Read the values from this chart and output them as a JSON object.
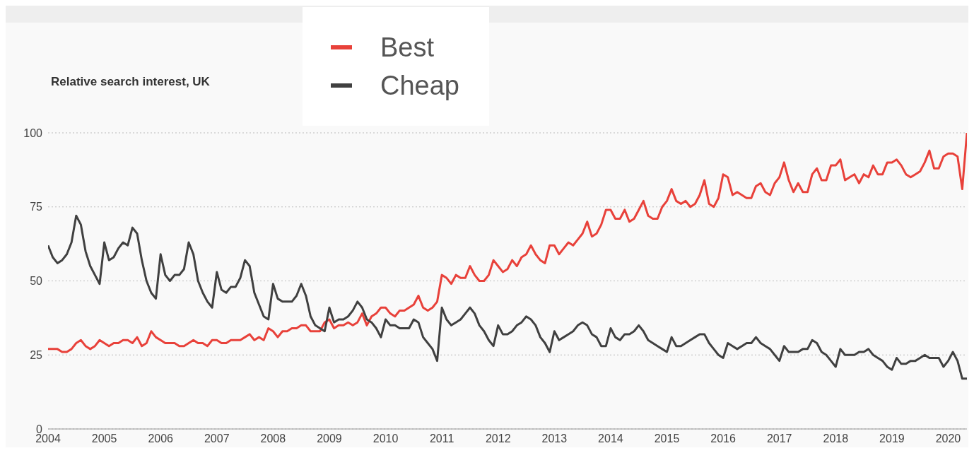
{
  "chart_data": {
    "type": "line",
    "ylabel": "Relative search interest, UK",
    "x": [
      "2004-01",
      "2004-02",
      "2004-03",
      "2004-04",
      "2004-05",
      "2004-06",
      "2004-07",
      "2004-08",
      "2004-09",
      "2004-10",
      "2004-11",
      "2004-12",
      "2005-01",
      "2005-02",
      "2005-03",
      "2005-04",
      "2005-05",
      "2005-06",
      "2005-07",
      "2005-08",
      "2005-09",
      "2005-10",
      "2005-11",
      "2005-12",
      "2006-01",
      "2006-02",
      "2006-03",
      "2006-04",
      "2006-05",
      "2006-06",
      "2006-07",
      "2006-08",
      "2006-09",
      "2006-10",
      "2006-11",
      "2006-12",
      "2007-01",
      "2007-02",
      "2007-03",
      "2007-04",
      "2007-05",
      "2007-06",
      "2007-07",
      "2007-08",
      "2007-09",
      "2007-10",
      "2007-11",
      "2007-12",
      "2008-01",
      "2008-02",
      "2008-03",
      "2008-04",
      "2008-05",
      "2008-06",
      "2008-07",
      "2008-08",
      "2008-09",
      "2008-10",
      "2008-11",
      "2008-12",
      "2009-01",
      "2009-02",
      "2009-03",
      "2009-04",
      "2009-05",
      "2009-06",
      "2009-07",
      "2009-08",
      "2009-09",
      "2009-10",
      "2009-11",
      "2009-12",
      "2010-01",
      "2010-02",
      "2010-03",
      "2010-04",
      "2010-05",
      "2010-06",
      "2010-07",
      "2010-08",
      "2010-09",
      "2010-10",
      "2010-11",
      "2010-12",
      "2011-01",
      "2011-02",
      "2011-03",
      "2011-04",
      "2011-05",
      "2011-06",
      "2011-07",
      "2011-08",
      "2011-09",
      "2011-10",
      "2011-11",
      "2011-12",
      "2012-01",
      "2012-02",
      "2012-03",
      "2012-04",
      "2012-05",
      "2012-06",
      "2012-07",
      "2012-08",
      "2012-09",
      "2012-10",
      "2012-11",
      "2012-12",
      "2013-01",
      "2013-02",
      "2013-03",
      "2013-04",
      "2013-05",
      "2013-06",
      "2013-07",
      "2013-08",
      "2013-09",
      "2013-10",
      "2013-11",
      "2013-12",
      "2014-01",
      "2014-02",
      "2014-03",
      "2014-04",
      "2014-05",
      "2014-06",
      "2014-07",
      "2014-08",
      "2014-09",
      "2014-10",
      "2014-11",
      "2014-12",
      "2015-01",
      "2015-02",
      "2015-03",
      "2015-04",
      "2015-05",
      "2015-06",
      "2015-07",
      "2015-08",
      "2015-09",
      "2015-10",
      "2015-11",
      "2015-12",
      "2016-01",
      "2016-02",
      "2016-03",
      "2016-04",
      "2016-05",
      "2016-06",
      "2016-07",
      "2016-08",
      "2016-09",
      "2016-10",
      "2016-11",
      "2016-12",
      "2017-01",
      "2017-02",
      "2017-03",
      "2017-04",
      "2017-05",
      "2017-06",
      "2017-07",
      "2017-08",
      "2017-09",
      "2017-10",
      "2017-11",
      "2017-12",
      "2018-01",
      "2018-02",
      "2018-03",
      "2018-04",
      "2018-05",
      "2018-06",
      "2018-07",
      "2018-08",
      "2018-09",
      "2018-10",
      "2018-11",
      "2018-12",
      "2019-01",
      "2019-02",
      "2019-03",
      "2019-04",
      "2019-05",
      "2019-06",
      "2019-07",
      "2019-08",
      "2019-09",
      "2019-10",
      "2019-11",
      "2019-12",
      "2020-01",
      "2020-02",
      "2020-03",
      "2020-04",
      "2020-05"
    ],
    "series": [
      {
        "name": "Best",
        "color": "#e8413a",
        "values": [
          27,
          27,
          27,
          26,
          26,
          27,
          29,
          30,
          28,
          27,
          28,
          30,
          29,
          28,
          29,
          29,
          30,
          30,
          29,
          31,
          28,
          29,
          33,
          31,
          30,
          29,
          29,
          29,
          28,
          28,
          29,
          30,
          29,
          29,
          28,
          30,
          30,
          29,
          29,
          30,
          30,
          30,
          31,
          32,
          30,
          31,
          30,
          34,
          33,
          31,
          33,
          33,
          34,
          34,
          35,
          35,
          33,
          33,
          33,
          36,
          37,
          34,
          35,
          35,
          36,
          35,
          36,
          39,
          35,
          38,
          39,
          41,
          41,
          39,
          38,
          40,
          40,
          41,
          42,
          45,
          41,
          40,
          41,
          43,
          52,
          51,
          49,
          52,
          51,
          51,
          55,
          52,
          50,
          50,
          52,
          57,
          55,
          53,
          54,
          57,
          55,
          58,
          59,
          62,
          59,
          57,
          56,
          62,
          62,
          59,
          61,
          63,
          62,
          64,
          66,
          70,
          65,
          66,
          69,
          74,
          74,
          71,
          71,
          74,
          70,
          71,
          74,
          77,
          72,
          71,
          71,
          75,
          77,
          81,
          77,
          76,
          77,
          75,
          76,
          79,
          84,
          76,
          75,
          78,
          86,
          85,
          79,
          80,
          79,
          78,
          78,
          82,
          83,
          80,
          79,
          83,
          85,
          90,
          84,
          80,
          83,
          80,
          80,
          86,
          88,
          84,
          84,
          89,
          89,
          91,
          84,
          85,
          86,
          83,
          86,
          85,
          89,
          86,
          86,
          90,
          90,
          91,
          89,
          86,
          85,
          86,
          87,
          90,
          94,
          88,
          88,
          92,
          93,
          93,
          92,
          81,
          100
        ]
      },
      {
        "name": "Cheap",
        "color": "#404040",
        "values": [
          62,
          58,
          56,
          57,
          59,
          63,
          72,
          69,
          60,
          55,
          52,
          49,
          63,
          57,
          58,
          61,
          63,
          62,
          68,
          66,
          57,
          50,
          46,
          44,
          59,
          52,
          50,
          52,
          52,
          54,
          63,
          59,
          50,
          46,
          43,
          41,
          53,
          47,
          46,
          48,
          48,
          51,
          57,
          55,
          46,
          42,
          38,
          37,
          49,
          44,
          43,
          43,
          43,
          45,
          49,
          45,
          38,
          35,
          34,
          33,
          41,
          36,
          37,
          37,
          38,
          40,
          43,
          41,
          37,
          36,
          34,
          31,
          37,
          35,
          35,
          34,
          34,
          34,
          37,
          36,
          31,
          29,
          27,
          23,
          41,
          37,
          35,
          36,
          37,
          39,
          41,
          39,
          35,
          33,
          30,
          28,
          35,
          32,
          32,
          33,
          35,
          36,
          38,
          37,
          35,
          31,
          29,
          26,
          33,
          30,
          31,
          32,
          33,
          35,
          36,
          35,
          32,
          31,
          28,
          28,
          34,
          31,
          30,
          32,
          32,
          33,
          35,
          33,
          30,
          29,
          28,
          27,
          26,
          31,
          28,
          28,
          29,
          30,
          31,
          32,
          32,
          29,
          27,
          25,
          24,
          29,
          28,
          27,
          28,
          29,
          29,
          31,
          29,
          28,
          27,
          25,
          23,
          28,
          26,
          26,
          26,
          27,
          27,
          30,
          29,
          26,
          25,
          23,
          21,
          27,
          25,
          25,
          25,
          26,
          26,
          27,
          25,
          24,
          23,
          21,
          20,
          24,
          22,
          22,
          23,
          23,
          24,
          25,
          24,
          24,
          24,
          21,
          23,
          26,
          23,
          17,
          17
        ]
      }
    ],
    "xlim": [
      "2004-01",
      "2020-05"
    ],
    "xticks": [
      "2004",
      "2005",
      "2006",
      "2007",
      "2008",
      "2009",
      "2010",
      "2011",
      "2012",
      "2013",
      "2014",
      "2015",
      "2016",
      "2017",
      "2018",
      "2019",
      "2020"
    ],
    "ylim": [
      0,
      100
    ],
    "yticks": [
      0,
      25,
      50,
      75,
      100
    ],
    "grid": "y",
    "legend": "top",
    "marker": "none",
    "line_style": "solid"
  }
}
